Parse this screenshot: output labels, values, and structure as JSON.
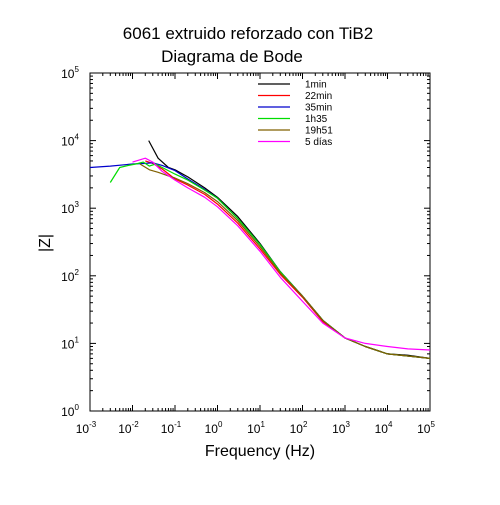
{
  "chart_data": {
    "type": "line",
    "title": "6061 extruido reforzado con TiB2",
    "subtitle": "Diagrama de Bode",
    "xlabel": "Frequency (Hz)",
    "ylabel": "|Z|",
    "x_scale": "log",
    "y_scale": "log",
    "xlim": [
      0.001,
      100000
    ],
    "ylim": [
      1,
      100000
    ],
    "x_ticks": [
      {
        "base": "10",
        "exp": "-3",
        "value": 0.001
      },
      {
        "base": "10",
        "exp": "-2",
        "value": 0.01
      },
      {
        "base": "10",
        "exp": "-1",
        "value": 0.1
      },
      {
        "base": "10",
        "exp": "0",
        "value": 1
      },
      {
        "base": "10",
        "exp": "1",
        "value": 10
      },
      {
        "base": "10",
        "exp": "2",
        "value": 100
      },
      {
        "base": "10",
        "exp": "3",
        "value": 1000
      },
      {
        "base": "10",
        "exp": "4",
        "value": 10000
      },
      {
        "base": "10",
        "exp": "5",
        "value": 100000
      }
    ],
    "y_ticks": [
      {
        "base": "10",
        "exp": "0",
        "value": 1
      },
      {
        "base": "10",
        "exp": "1",
        "value": 10
      },
      {
        "base": "10",
        "exp": "2",
        "value": 100
      },
      {
        "base": "10",
        "exp": "3",
        "value": 1000
      },
      {
        "base": "10",
        "exp": "4",
        "value": 10000
      },
      {
        "base": "10",
        "exp": "5",
        "value": 100000
      }
    ],
    "grid": false,
    "legend_position": "top-right",
    "series": [
      {
        "name": "1min",
        "color": "#000000",
        "x": [
          0.024,
          0.04,
          0.07,
          0.1,
          0.2,
          0.5,
          1,
          3,
          10,
          30,
          100,
          300,
          1000,
          3000,
          10000,
          30000,
          100000
        ],
        "y": [
          10000,
          5500,
          4000,
          3700,
          2900,
          2000,
          1450,
          750,
          300,
          115,
          50,
          22,
          12,
          9,
          7,
          6.7,
          6
        ]
      },
      {
        "name": "22min",
        "color": "#ff0000",
        "x": [
          0.02,
          0.03,
          0.05,
          0.1,
          0.2,
          0.5,
          1,
          3,
          10,
          30,
          100,
          300,
          1000,
          3000,
          10000,
          30000,
          100000
        ],
        "y": [
          5000,
          4600,
          3800,
          2700,
          2200,
          1600,
          1150,
          600,
          250,
          105,
          48,
          21,
          12,
          9,
          7,
          6.5,
          6
        ]
      },
      {
        "name": "35min",
        "color": "#0000cc",
        "x": [
          0.001,
          0.003,
          0.01,
          0.02,
          0.03,
          0.05,
          0.1,
          0.2,
          0.5,
          1,
          3,
          10,
          30,
          100,
          300,
          1000,
          3000,
          10000,
          30000,
          100000
        ],
        "y": [
          4000,
          4200,
          4500,
          4600,
          4700,
          4300,
          3600,
          2700,
          1900,
          1400,
          700,
          290,
          115,
          50,
          22,
          12,
          9,
          7,
          6.5,
          6
        ]
      },
      {
        "name": "1h35",
        "color": "#00dd00",
        "x": [
          0.003,
          0.005,
          0.008,
          0.012,
          0.018,
          0.025,
          0.035,
          0.05,
          0.1,
          0.2,
          0.5,
          1,
          3,
          10,
          30,
          100,
          300,
          1000,
          3000,
          10000,
          30000,
          100000
        ],
        "y": [
          2400,
          4000,
          4300,
          4500,
          4800,
          4200,
          4500,
          4000,
          3200,
          2600,
          1850,
          1400,
          700,
          290,
          115,
          50,
          22,
          12,
          9,
          7,
          6.5,
          6
        ]
      },
      {
        "name": "19h51",
        "color": "#806000",
        "x": [
          0.015,
          0.025,
          0.04,
          0.07,
          0.1,
          0.2,
          0.5,
          1,
          3,
          10,
          30,
          100,
          300,
          1000,
          3000,
          10000,
          30000,
          100000
        ],
        "y": [
          4500,
          3700,
          3400,
          3000,
          2800,
          2300,
          1700,
          1250,
          650,
          270,
          110,
          50,
          22,
          12,
          9,
          7,
          6.5,
          6
        ]
      },
      {
        "name": "5 días",
        "color": "#ff00ff",
        "x": [
          0.01,
          0.02,
          0.03,
          0.05,
          0.1,
          0.2,
          0.5,
          1,
          3,
          10,
          30,
          100,
          300,
          1000,
          3000,
          10000,
          30000,
          100000
        ],
        "y": [
          4800,
          5500,
          4800,
          3500,
          2600,
          2000,
          1450,
          1050,
          550,
          230,
          95,
          42,
          20,
          12,
          10,
          9,
          8.3,
          8
        ]
      }
    ]
  }
}
